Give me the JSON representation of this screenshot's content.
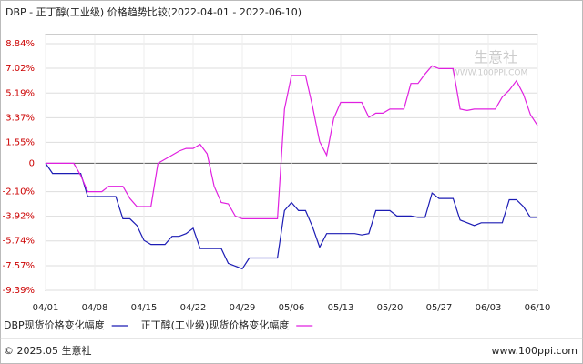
{
  "chart_data": {
    "type": "line",
    "title": "DBP - 正丁醇(工业级) 价格趋势比较(2022-04-01 - 2022-06-10)",
    "categories": [
      "04/01",
      null,
      null,
      null,
      null,
      null,
      null,
      "04/08",
      null,
      null,
      null,
      null,
      null,
      null,
      "04/15",
      null,
      null,
      null,
      null,
      null,
      null,
      "04/22",
      null,
      null,
      null,
      null,
      null,
      null,
      "04/29",
      null,
      null,
      null,
      null,
      null,
      null,
      "05/06",
      null,
      null,
      null,
      null,
      null,
      null,
      "05/13",
      null,
      null,
      null,
      null,
      null,
      null,
      "05/20",
      null,
      null,
      null,
      null,
      null,
      null,
      "05/27",
      null,
      null,
      null,
      null,
      null,
      null,
      "06/03",
      null,
      null,
      null,
      null,
      null,
      null,
      "06/10"
    ],
    "series": [
      {
        "name": "DBP现货价格变化幅度",
        "color": "#1c1cb4",
        "values": [
          0,
          -0.75,
          -0.75,
          -0.75,
          -0.75,
          -0.75,
          -2.46,
          -2.46,
          -2.46,
          -2.46,
          -2.46,
          -4.1,
          -4.1,
          -4.6,
          -5.7,
          -6.0,
          -6.0,
          -6.0,
          -5.4,
          -5.4,
          -5.2,
          -4.8,
          -6.3,
          -6.3,
          -6.3,
          -6.3,
          -7.4,
          -7.6,
          -7.8,
          -7.0,
          -7.0,
          -7.0,
          -7.0,
          -7.0,
          -3.5,
          -2.9,
          -3.5,
          -3.5,
          -4.7,
          -6.2,
          -5.2,
          -5.2,
          -5.2,
          -5.2,
          -5.2,
          -5.3,
          -5.2,
          -3.5,
          -3.5,
          -3.5,
          -3.9,
          -3.9,
          -3.9,
          -4.0,
          -4.0,
          -2.2,
          -2.6,
          -2.6,
          -2.6,
          -4.2,
          -4.4,
          -4.6,
          -4.4,
          -4.4,
          -4.4,
          -4.4,
          -2.7,
          -2.7,
          -3.2,
          -4.0,
          -4.0
        ]
      },
      {
        "name": "正丁醇(工业级)现货价格变化幅度",
        "color": "#e020e0",
        "values": [
          0,
          0,
          0,
          0,
          0,
          -0.9,
          -2.1,
          -2.1,
          -2.1,
          -1.7,
          -1.7,
          -1.7,
          -2.6,
          -3.2,
          -3.2,
          -3.2,
          0,
          0.3,
          0.6,
          0.9,
          1.1,
          1.1,
          1.4,
          0.7,
          -1.7,
          -2.9,
          -3.0,
          -3.9,
          -4.1,
          -4.1,
          -4.1,
          -4.1,
          -4.1,
          -4.1,
          4.0,
          6.5,
          6.5,
          6.5,
          4.2,
          1.6,
          0.6,
          3.3,
          4.5,
          4.5,
          4.5,
          4.5,
          3.4,
          3.7,
          3.7,
          4.0,
          4.0,
          4.0,
          5.9,
          5.9,
          6.6,
          7.2,
          7.0,
          7.0,
          7.0,
          4.0,
          3.9,
          4.0,
          4.0,
          4.0,
          4.0,
          4.9,
          5.4,
          6.1,
          5.1,
          3.6,
          2.8
        ]
      }
    ],
    "ylim": [
      -9.39,
      8.84
    ],
    "yticks": [
      {
        "value": 8.84,
        "label": "8.84%"
      },
      {
        "value": 7.02,
        "label": "7.02%"
      },
      {
        "value": 5.19,
        "label": "5.19%"
      },
      {
        "value": 3.37,
        "label": "3.37%"
      },
      {
        "value": 1.55,
        "label": "1.55%"
      },
      0,
      {
        "value": -2.1,
        "label": "-2.10%"
      },
      {
        "value": -3.92,
        "label": "-3.92%"
      },
      {
        "value": -5.74,
        "label": "-5.74%"
      },
      {
        "value": -7.57,
        "label": "-7.57%"
      },
      {
        "value": -9.39,
        "label": "-9.39%"
      }
    ],
    "grid": true
  },
  "watermark": {
    "brand": "生意社",
    "url": "WWW.100PPI.COM"
  },
  "footer": {
    "copyright": "© 2025.05 生意社",
    "site": "www.100ppi.com"
  }
}
